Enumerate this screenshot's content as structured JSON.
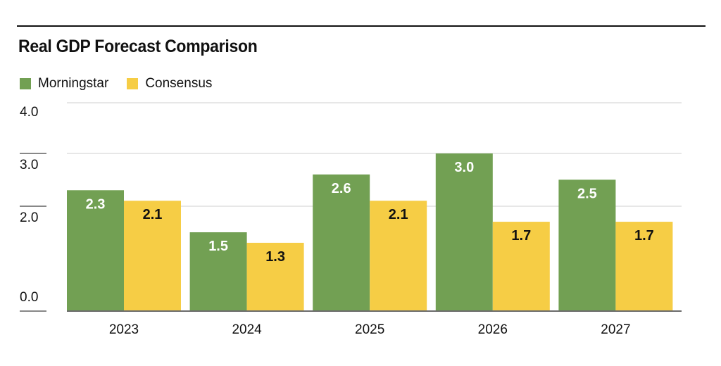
{
  "chart_data": {
    "type": "bar",
    "title": "Real GDP Forecast Comparison",
    "categories": [
      "2023",
      "2024",
      "2025",
      "2026",
      "2027"
    ],
    "series": [
      {
        "name": "Morningstar",
        "color": "#72a053",
        "values": [
          2.3,
          1.5,
          2.6,
          3.0,
          2.5
        ],
        "labels": [
          "2.3",
          "1.5",
          "2.6",
          "3.0",
          "2.5"
        ],
        "label_color": "#ffffff"
      },
      {
        "name": "Consensus",
        "color": "#f6cd45",
        "values": [
          2.1,
          1.3,
          2.1,
          1.7,
          1.7
        ],
        "labels": [
          "2.1",
          "1.3",
          "2.1",
          "1.7",
          "1.7"
        ],
        "label_color": "#111111"
      }
    ],
    "y_ticks": [
      {
        "value": 0.0,
        "label": "0.0"
      },
      {
        "value": 2.0,
        "label": "2.0"
      },
      {
        "value": 3.0,
        "label": "3.0"
      },
      {
        "value": 4.0,
        "label": "4.0"
      }
    ],
    "ylim": [
      0,
      4
    ],
    "xlabel": "",
    "ylabel": "",
    "grid": true,
    "legend_position": "top-left"
  }
}
